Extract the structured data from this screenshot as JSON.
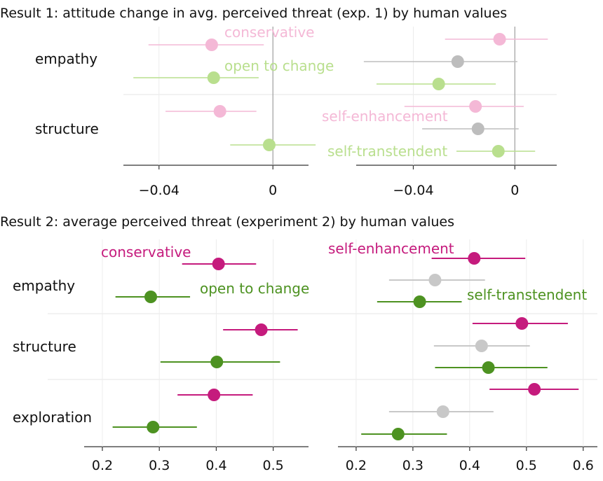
{
  "chart_data": [
    {
      "type": "scatter",
      "title": "Result 1:  attitude change in avg. perceived threat (exp. 1) by human values",
      "rows": [
        "empathy",
        "structure"
      ],
      "colors": {
        "pink": "#f4b8d6",
        "green": "#b9df8e",
        "gray": "#bdbdbd"
      },
      "left": {
        "xlim": [
          -0.0525,
          0.0125
        ],
        "ticks": [
          -0.04,
          0
        ],
        "tick_labels": [
          "−0.04",
          "0"
        ],
        "reference_x": 0,
        "series": [
          {
            "name": "conservative",
            "color": "pink",
            "points": [
              {
                "row": "empathy",
                "x": -0.0215,
                "lo": -0.0437,
                "hi": -0.0032
              },
              {
                "row": "structure",
                "x": -0.0186,
                "lo": -0.0377,
                "hi": -0.0058
              }
            ]
          },
          {
            "name": "open to change",
            "color": "green",
            "points": [
              {
                "row": "empathy",
                "x": -0.0208,
                "lo": -0.049,
                "hi": -0.005
              },
              {
                "row": "structure",
                "x": -0.0013,
                "lo": -0.015,
                "hi": 0.015
              }
            ]
          }
        ]
      },
      "right": {
        "xlim": [
          -0.0625,
          0.0165
        ],
        "ticks": [
          -0.04,
          0
        ],
        "tick_labels": [
          "−0.04",
          "0"
        ],
        "reference_x": 0,
        "series": [
          {
            "name": "self-enhancement",
            "color": "pink",
            "points": [
              {
                "row": "empathy",
                "x": -0.006,
                "lo": -0.0275,
                "hi": 0.013
              },
              {
                "row": "structure",
                "x": -0.0155,
                "lo": -0.0435,
                "hi": 0.0035
              }
            ]
          },
          {
            "name": "",
            "color": "gray",
            "points": [
              {
                "row": "empathy",
                "x": -0.0225,
                "lo": -0.0595,
                "hi": 0.001
              },
              {
                "row": "structure",
                "x": -0.0145,
                "lo": -0.0365,
                "hi": 0.0015
              }
            ]
          },
          {
            "name": "self-transtendent",
            "color": "green",
            "points": [
              {
                "row": "empathy",
                "x": -0.03,
                "lo": -0.0545,
                "hi": -0.0075
              },
              {
                "row": "structure",
                "x": -0.0065,
                "lo": -0.023,
                "hi": 0.008
              }
            ]
          }
        ]
      }
    },
    {
      "type": "scatter",
      "title": "Result 2:  average perceived threat (experiment 2) by human values",
      "rows": [
        "empathy",
        "structure",
        "exploration"
      ],
      "colors": {
        "pink": "#c51b7d",
        "green": "#4d9221",
        "gray": "#c8c8c8"
      },
      "left": {
        "xlim": [
          0.168,
          0.562
        ],
        "ticks": [
          0.2,
          0.3,
          0.4,
          0.5
        ],
        "tick_labels": [
          "0.2",
          "0.3",
          "0.4",
          "0.5"
        ],
        "series": [
          {
            "name": "conservative",
            "color": "pink",
            "points": [
              {
                "row": "empathy",
                "x": 0.404,
                "lo": 0.34,
                "hi": 0.47
              },
              {
                "row": "structure",
                "x": 0.479,
                "lo": 0.412,
                "hi": 0.543
              },
              {
                "row": "exploration",
                "x": 0.396,
                "lo": 0.332,
                "hi": 0.464
              }
            ]
          },
          {
            "name": "open to change",
            "color": "green",
            "points": [
              {
                "row": "empathy",
                "x": 0.285,
                "lo": 0.223,
                "hi": 0.354
              },
              {
                "row": "structure",
                "x": 0.401,
                "lo": 0.302,
                "hi": 0.512
              },
              {
                "row": "exploration",
                "x": 0.289,
                "lo": 0.218,
                "hi": 0.366
              }
            ]
          }
        ]
      },
      "right": {
        "xlim": [
          0.168,
          0.625
        ],
        "ticks": [
          0.2,
          0.3,
          0.4,
          0.5,
          0.6
        ],
        "tick_labels": [
          "0.2",
          "0.3",
          "0.4",
          "0.5",
          "0.6"
        ],
        "series": [
          {
            "name": "self-enhancement",
            "color": "pink",
            "points": [
              {
                "row": "empathy",
                "x": 0.408,
                "lo": 0.333,
                "hi": 0.498
              },
              {
                "row": "structure",
                "x": 0.492,
                "lo": 0.405,
                "hi": 0.573
              },
              {
                "row": "exploration",
                "x": 0.514,
                "lo": 0.435,
                "hi": 0.592
              }
            ]
          },
          {
            "name": "",
            "color": "gray",
            "points": [
              {
                "row": "empathy",
                "x": 0.339,
                "lo": 0.258,
                "hi": 0.427
              },
              {
                "row": "structure",
                "x": 0.421,
                "lo": 0.337,
                "hi": 0.506
              },
              {
                "row": "exploration",
                "x": 0.353,
                "lo": 0.258,
                "hi": 0.442
              }
            ]
          },
          {
            "name": "self-transtendent",
            "color": "green",
            "points": [
              {
                "row": "empathy",
                "x": 0.312,
                "lo": 0.237,
                "hi": 0.386
              },
              {
                "row": "structure",
                "x": 0.433,
                "lo": 0.339,
                "hi": 0.537
              },
              {
                "row": "exploration",
                "x": 0.274,
                "lo": 0.209,
                "hi": 0.36
              }
            ]
          }
        ]
      }
    }
  ]
}
